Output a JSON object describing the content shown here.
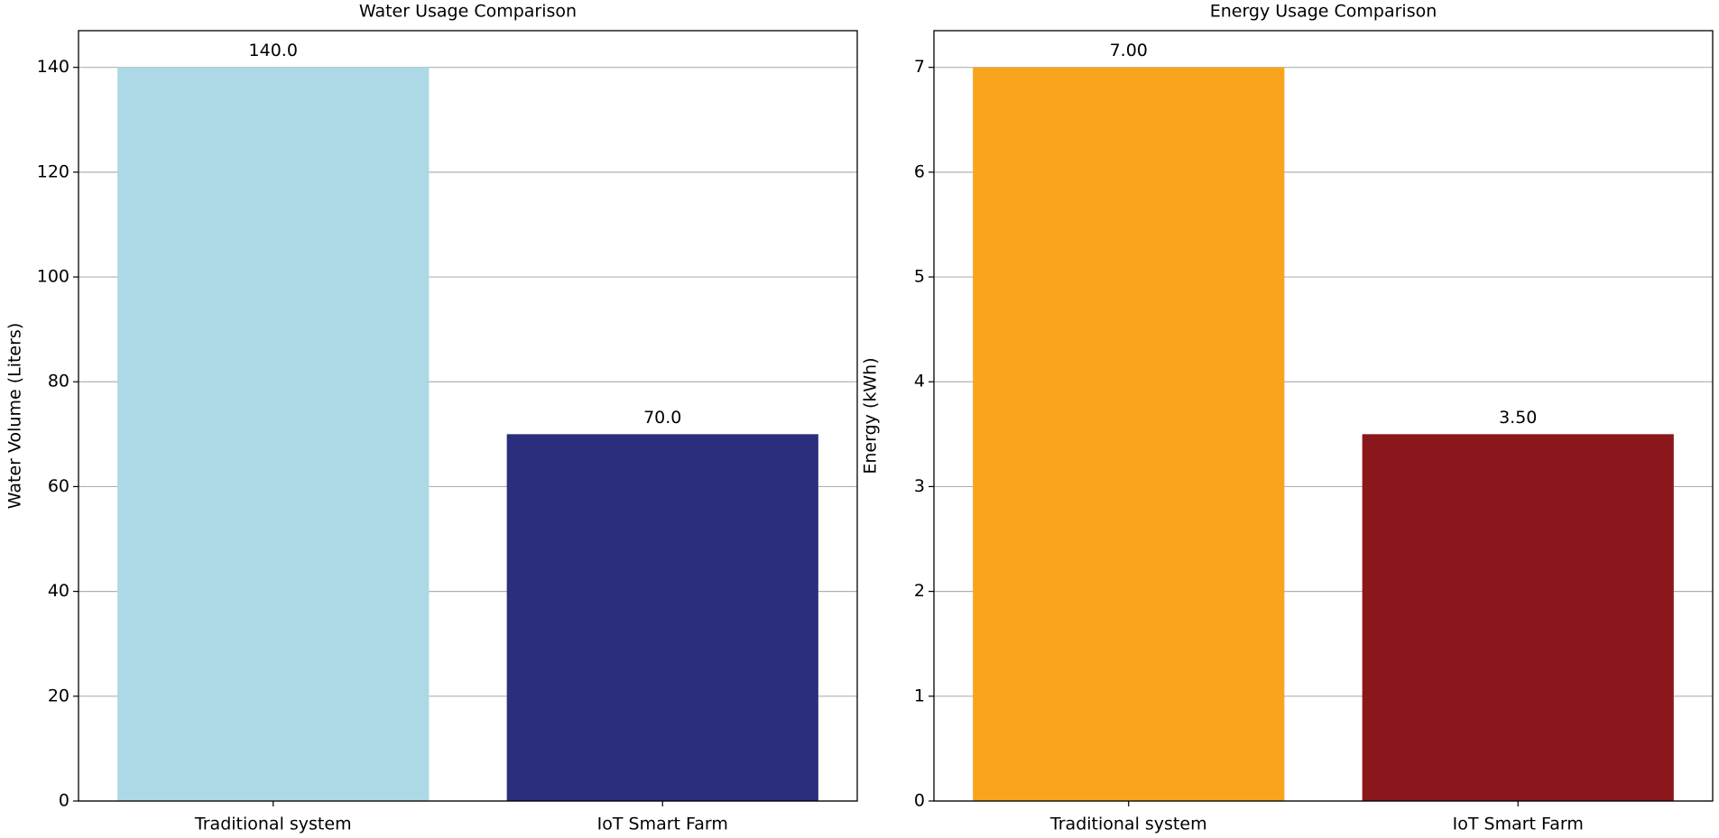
{
  "chart_data": [
    {
      "type": "bar",
      "title": "Water Usage Comparison",
      "ylabel": "Water Volume (Liters)",
      "categories": [
        "Traditional system",
        "IoT Smart Farm"
      ],
      "values": [
        140,
        70
      ],
      "value_labels": [
        "140.0",
        "70.0"
      ],
      "colors": [
        "#add8e6",
        "#2b2e7c"
      ],
      "ylim": [
        0,
        147
      ],
      "yticks": [
        0,
        20,
        40,
        60,
        80,
        100,
        120,
        140
      ],
      "grid": true
    },
    {
      "type": "bar",
      "title": "Energy Usage Comparison",
      "ylabel": "Energy (kWh)",
      "categories": [
        "Traditional system",
        "IoT Smart Farm"
      ],
      "values": [
        7,
        3.5
      ],
      "value_labels": [
        "7.00",
        "3.50"
      ],
      "colors": [
        "#f9a41d",
        "#8b171c"
      ],
      "ylim": [
        0,
        7.35
      ],
      "yticks": [
        0,
        1,
        2,
        3,
        4,
        5,
        6,
        7
      ],
      "grid": true
    }
  ]
}
